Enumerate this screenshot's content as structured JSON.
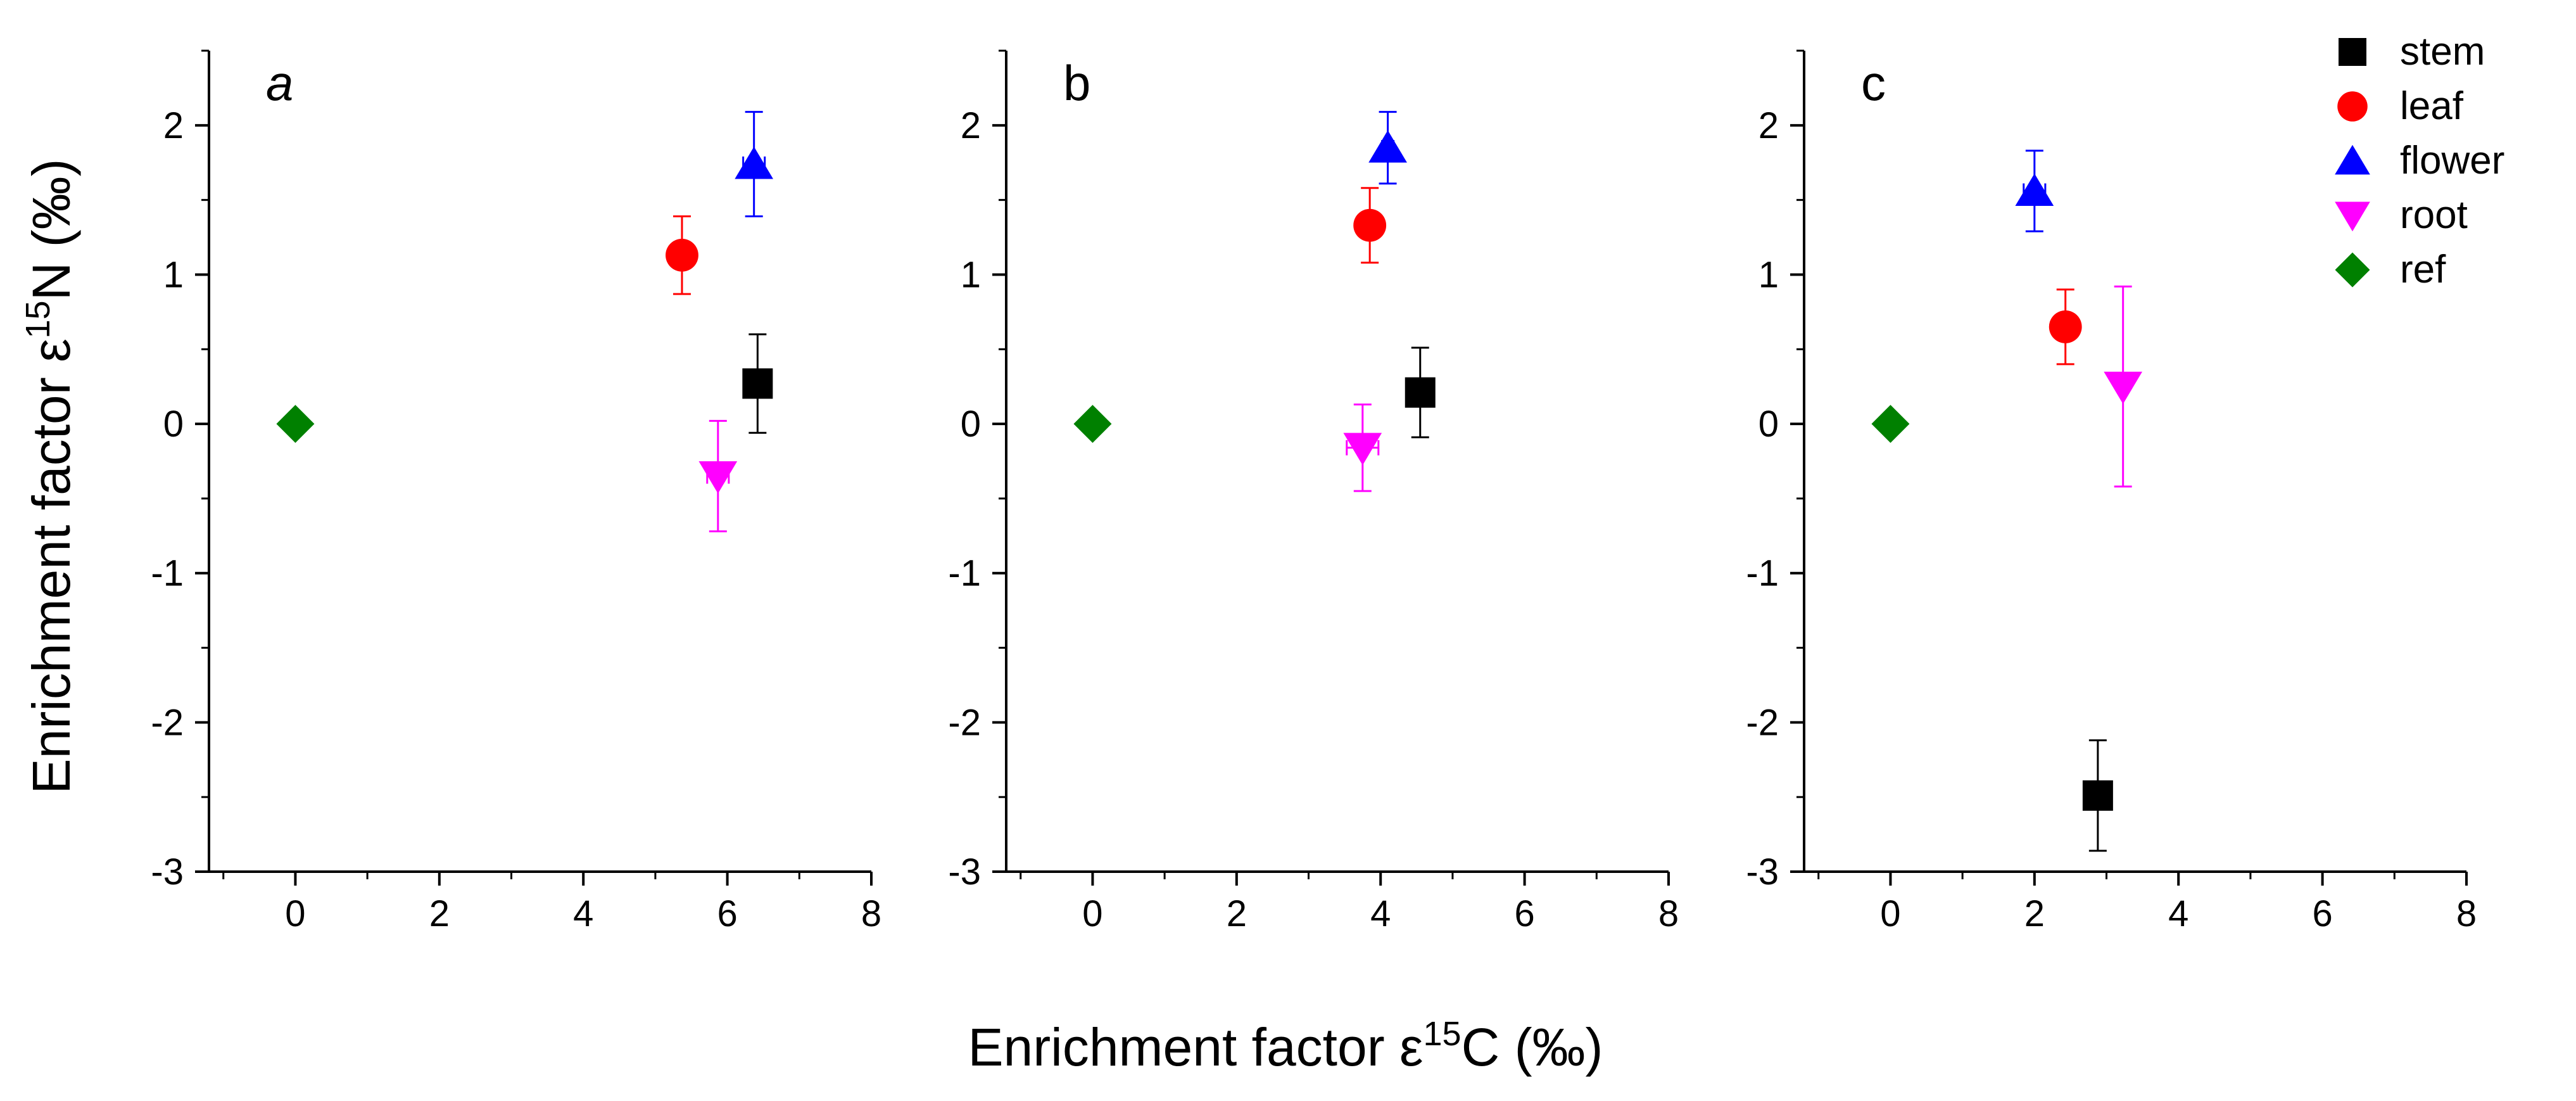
{
  "figure": {
    "xlabel_text": "Enrichment factor ε",
    "xlabel_sup": "15",
    "xlabel_unit": "C (‰)",
    "ylabel_text": "Enrichment factor ε",
    "ylabel_sup": "15",
    "ylabel_unit": "N (‰)"
  },
  "legend": {
    "position": "top-right",
    "entries": [
      {
        "name": "stem",
        "color": "#000000",
        "marker": "square"
      },
      {
        "name": "leaf",
        "color": "#ff0000",
        "marker": "circle"
      },
      {
        "name": "flower",
        "color": "#0000ff",
        "marker": "triangle-up"
      },
      {
        "name": "root",
        "color": "#ff00ff",
        "marker": "triangle-down"
      },
      {
        "name": "ref",
        "color": "#008000",
        "marker": "diamond"
      }
    ]
  },
  "chart_data": [
    {
      "type": "scatter",
      "panel_label": "a",
      "panel_label_italic": true,
      "xlim": [
        -1.2,
        8
      ],
      "ylim": [
        -3,
        2.5
      ],
      "xticks": [
        0,
        2,
        4,
        6,
        8
      ],
      "yticks": [
        -3,
        -2,
        -1,
        0,
        1,
        2
      ],
      "series": [
        {
          "name": "stem",
          "x": 6.42,
          "y": 0.27,
          "yerr": 0.33,
          "xerr": 0.1
        },
        {
          "name": "leaf",
          "x": 5.37,
          "y": 1.13,
          "yerr": 0.26,
          "xerr": 0.05
        },
        {
          "name": "flower",
          "x": 6.37,
          "y": 1.74,
          "yerr": 0.35,
          "xerr": 0.15
        },
        {
          "name": "root",
          "x": 5.87,
          "y": -0.35,
          "yerr": 0.37,
          "xerr": 0.15
        },
        {
          "name": "ref",
          "x": 0,
          "y": 0,
          "yerr": 0,
          "xerr": 0
        }
      ]
    },
    {
      "type": "scatter",
      "panel_label": "b",
      "panel_label_italic": false,
      "xlim": [
        -1.2,
        8
      ],
      "ylim": [
        -3,
        2.5
      ],
      "xticks": [
        0,
        2,
        4,
        6,
        8
      ],
      "yticks": [
        -3,
        -2,
        -1,
        0,
        1,
        2
      ],
      "series": [
        {
          "name": "stem",
          "x": 4.55,
          "y": 0.21,
          "yerr": 0.3,
          "xerr": 0.05
        },
        {
          "name": "leaf",
          "x": 3.85,
          "y": 1.33,
          "yerr": 0.25,
          "xerr": 0.08
        },
        {
          "name": "flower",
          "x": 4.1,
          "y": 1.85,
          "yerr": 0.24,
          "xerr": 0.08
        },
        {
          "name": "root",
          "x": 3.75,
          "y": -0.16,
          "yerr": 0.29,
          "xerr": 0.22
        },
        {
          "name": "ref",
          "x": 0,
          "y": 0,
          "yerr": 0,
          "xerr": 0
        }
      ]
    },
    {
      "type": "scatter",
      "panel_label": "c",
      "panel_label_italic": false,
      "xlim": [
        -1.2,
        8
      ],
      "ylim": [
        -3,
        2.5
      ],
      "xticks": [
        0,
        2,
        4,
        6,
        8
      ],
      "yticks": [
        -3,
        -2,
        -1,
        0,
        1,
        2
      ],
      "series": [
        {
          "name": "stem",
          "x": 2.88,
          "y": -2.49,
          "yerr": 0.37,
          "xerr": 0.15
        },
        {
          "name": "leaf",
          "x": 2.43,
          "y": 0.65,
          "yerr": 0.25,
          "xerr": 0.05
        },
        {
          "name": "flower",
          "x": 2.0,
          "y": 1.56,
          "yerr": 0.27,
          "xerr": 0.15
        },
        {
          "name": "root",
          "x": 3.23,
          "y": 0.25,
          "yerr": 0.67,
          "xerr": 0.05
        },
        {
          "name": "ref",
          "x": 0,
          "y": 0,
          "yerr": 0,
          "xerr": 0
        }
      ]
    }
  ]
}
